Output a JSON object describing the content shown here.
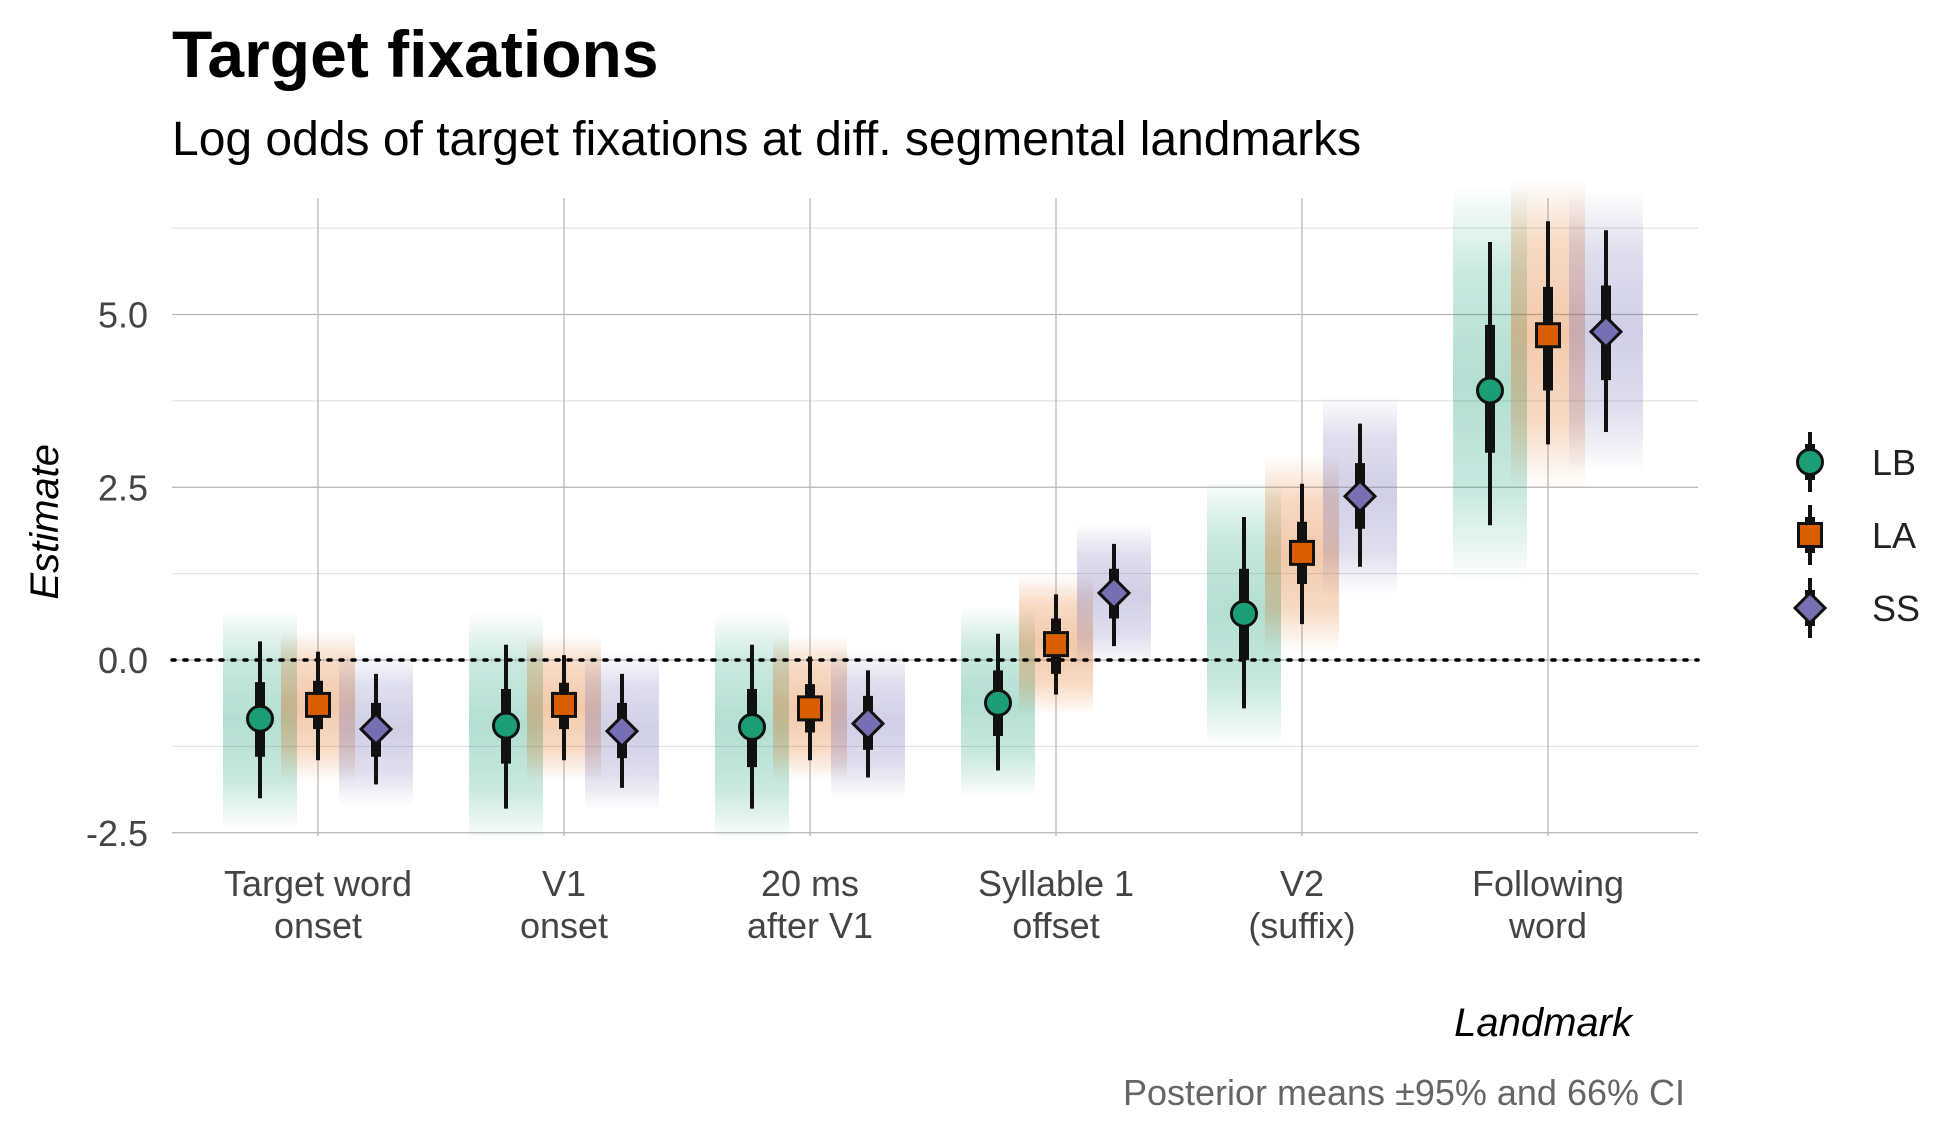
{
  "chart_data": {
    "type": "scatter",
    "title": "Target fixations",
    "subtitle": "Log odds of target fixations at diff. segmental landmarks",
    "caption": "Posterior means ±95% and 66% CI",
    "xlabel": "Landmark",
    "ylabel": "Estimate",
    "categories": [
      [
        "Target word",
        "onset"
      ],
      [
        "V1",
        "onset"
      ],
      [
        "20 ms",
        "after V1"
      ],
      [
        "Syllable 1",
        "offset"
      ],
      [
        "V2",
        "(suffix)"
      ],
      [
        "Following",
        "word"
      ]
    ],
    "yticks": [
      -2.5,
      0.0,
      2.5,
      5.0
    ],
    "ytick_labels": [
      "-2.5",
      "0.0",
      "2.5",
      "5.0"
    ],
    "ylim": [
      -2.6,
      6.5
    ],
    "reference_line": 0,
    "grid": true,
    "legend_position": "right",
    "series": [
      {
        "name": "LB",
        "color": "#1b9e77",
        "shape": "circle",
        "mean": [
          -0.85,
          -0.95,
          -0.97,
          -0.62,
          0.67,
          3.9
        ],
        "ci66": [
          [
            -1.4,
            -0.32
          ],
          [
            -1.5,
            -0.42
          ],
          [
            -1.55,
            -0.42
          ],
          [
            -1.1,
            -0.15
          ],
          [
            0.0,
            1.32
          ],
          [
            3.0,
            4.85
          ]
        ],
        "ci95": [
          [
            -2.0,
            0.27
          ],
          [
            -2.15,
            0.22
          ],
          [
            -2.15,
            0.22
          ],
          [
            -1.6,
            0.38
          ],
          [
            -0.7,
            2.07
          ],
          [
            1.95,
            6.05
          ]
        ]
      },
      {
        "name": "LA",
        "color": "#d95f02",
        "shape": "square",
        "mean": [
          -0.65,
          -0.65,
          -0.7,
          0.23,
          1.55,
          4.7
        ],
        "ci66": [
          [
            -1.0,
            -0.3
          ],
          [
            -1.0,
            -0.33
          ],
          [
            -1.05,
            -0.35
          ],
          [
            -0.2,
            0.6
          ],
          [
            1.1,
            2.0
          ],
          [
            3.9,
            5.4
          ]
        ],
        "ci95": [
          [
            -1.45,
            0.12
          ],
          [
            -1.45,
            0.07
          ],
          [
            -1.45,
            0.05
          ],
          [
            -0.5,
            0.95
          ],
          [
            0.52,
            2.55
          ],
          [
            3.12,
            6.35
          ]
        ]
      },
      {
        "name": "SS",
        "color": "#7570b3",
        "shape": "diamond",
        "mean": [
          -1.0,
          -1.03,
          -0.92,
          0.97,
          2.37,
          4.75
        ],
        "ci66": [
          [
            -1.4,
            -0.62
          ],
          [
            -1.42,
            -0.62
          ],
          [
            -1.3,
            -0.52
          ],
          [
            0.6,
            1.32
          ],
          [
            1.9,
            2.85
          ],
          [
            4.05,
            5.42
          ]
        ],
        "ci95": [
          [
            -1.8,
            -0.2
          ],
          [
            -1.85,
            -0.2
          ],
          [
            -1.7,
            -0.15
          ],
          [
            0.2,
            1.68
          ],
          [
            1.35,
            3.42
          ],
          [
            3.3,
            6.22
          ]
        ]
      }
    ]
  }
}
